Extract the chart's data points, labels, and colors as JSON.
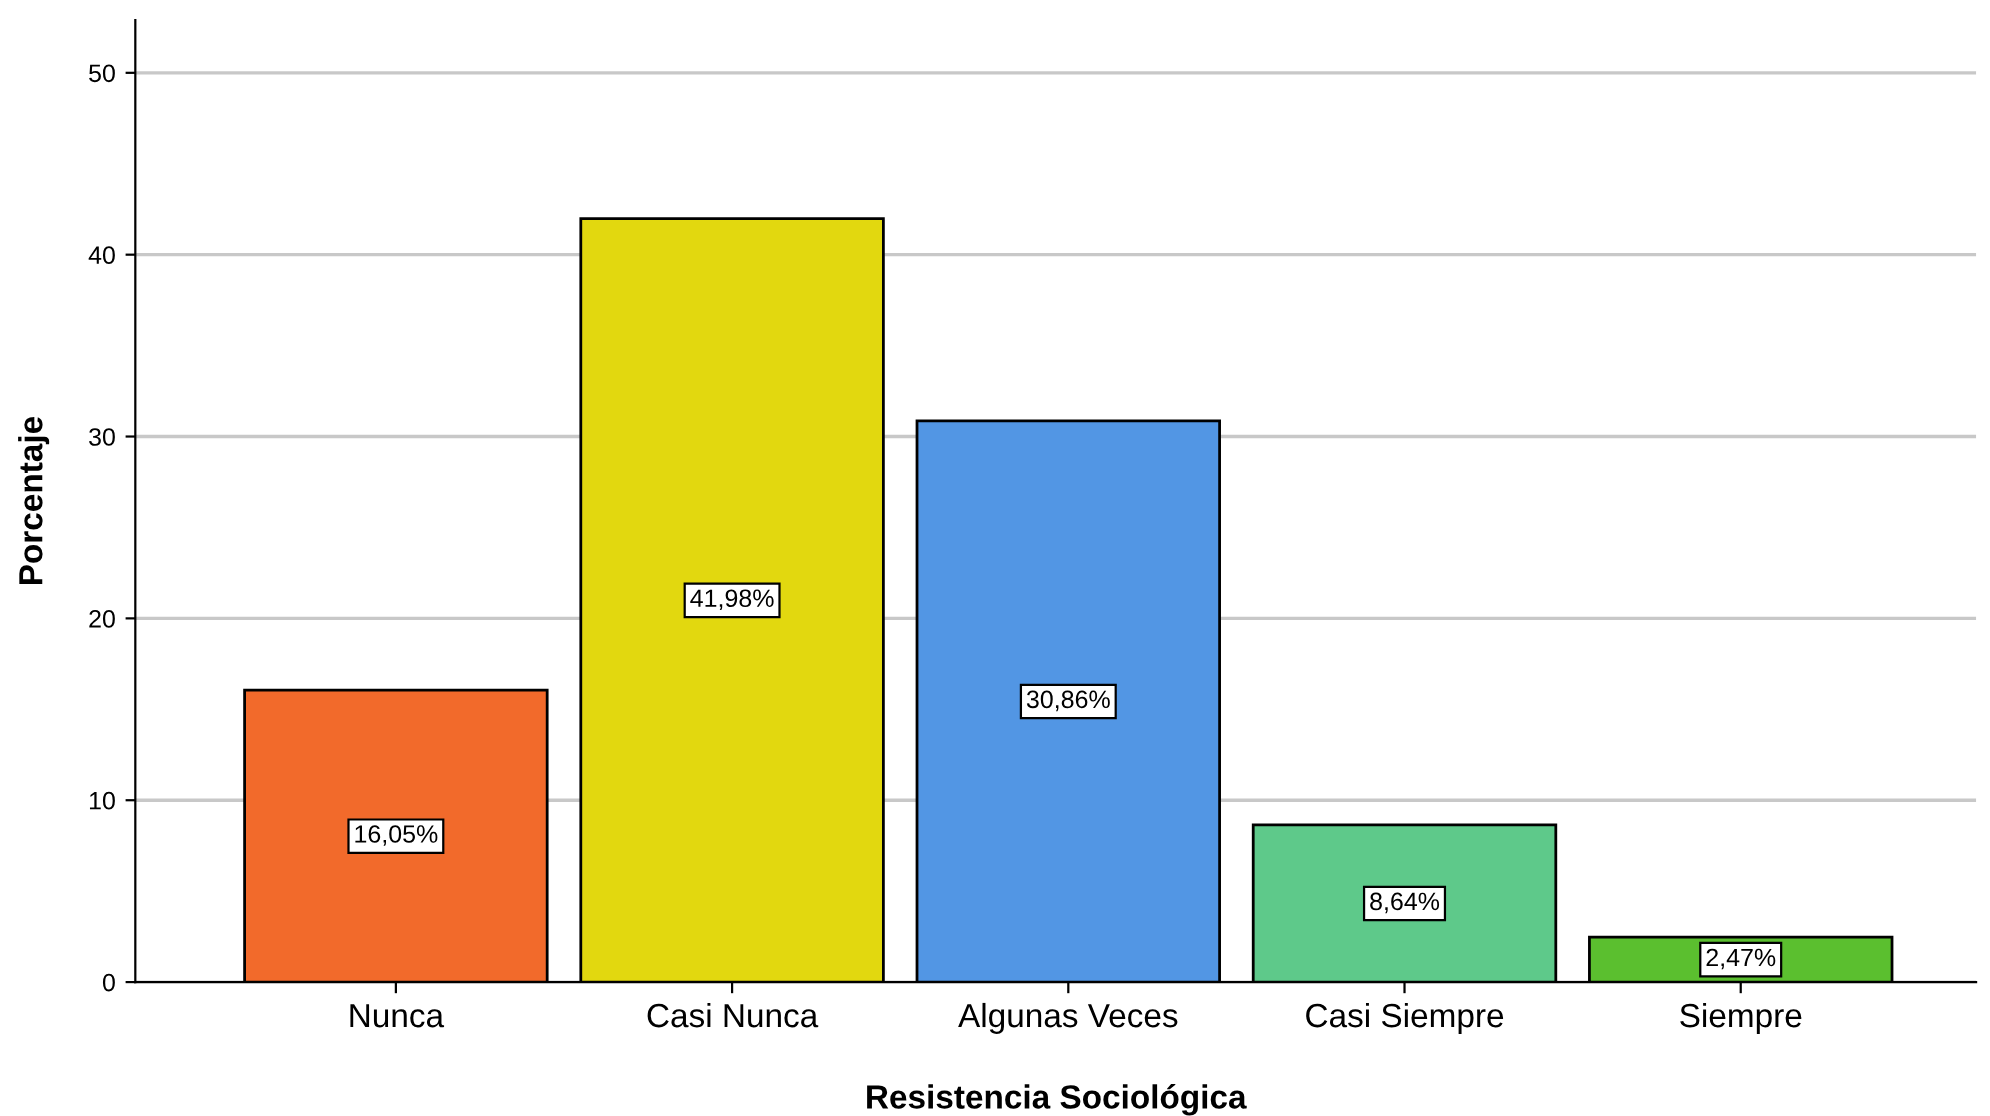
{
  "chart_data": {
    "type": "bar",
    "xlabel": "Resistencia Sociológica",
    "ylabel": "Porcentaje",
    "categories": [
      "Nunca",
      "Casi Nunca",
      "Algunas Veces",
      "Casi Siempre",
      "Siempre"
    ],
    "values": [
      16.05,
      41.98,
      30.86,
      8.64,
      2.47
    ],
    "colors": [
      "#f26a2b",
      "#e2d80f",
      "#5296e4",
      "#5ec98a",
      "#5bbf2f"
    ],
    "value_labels": [
      "16,05%",
      "41,98%",
      "30,86%",
      "8,64%",
      "2,47%"
    ],
    "ylim": [
      0,
      52.9
    ],
    "yticks": [
      0,
      10,
      20,
      30,
      40,
      50
    ],
    "grid": "y"
  }
}
